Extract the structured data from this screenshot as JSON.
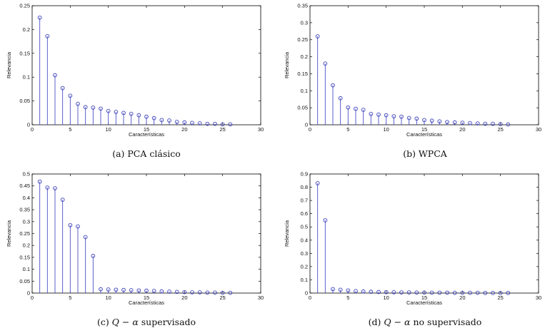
{
  "chart_data": [
    {
      "type": "stem",
      "caption": "(a)  PCA clásico",
      "xlabel": "Características",
      "ylabel": "Relevancia",
      "xlim": [
        0,
        30
      ],
      "ylim": [
        0,
        0.25
      ],
      "xticks": [
        0,
        5,
        10,
        15,
        20,
        25,
        30
      ],
      "yticks": [
        0,
        0.05,
        0.1,
        0.15,
        0.2,
        0.25
      ],
      "ytick_labels": [
        "0",
        "0.05",
        "0.1",
        "0.15",
        "0.2",
        "0.25"
      ],
      "x": [
        1,
        2,
        3,
        4,
        5,
        6,
        7,
        8,
        9,
        10,
        11,
        12,
        13,
        14,
        15,
        16,
        17,
        18,
        19,
        20,
        21,
        22,
        23,
        24,
        25,
        26
      ],
      "values": [
        0.225,
        0.186,
        0.104,
        0.077,
        0.061,
        0.044,
        0.037,
        0.036,
        0.034,
        0.029,
        0.027,
        0.025,
        0.023,
        0.02,
        0.017,
        0.014,
        0.01,
        0.009,
        0.006,
        0.005,
        0.004,
        0.003,
        0.002,
        0.002,
        0.001,
        0.001
      ]
    },
    {
      "type": "stem",
      "caption": "(b)  WPCA",
      "xlabel": "Características",
      "ylabel": "Relevancia",
      "xlim": [
        0,
        30
      ],
      "ylim": [
        0,
        0.35
      ],
      "xticks": [
        0,
        5,
        10,
        15,
        20,
        25,
        30
      ],
      "yticks": [
        0,
        0.05,
        0.1,
        0.15,
        0.2,
        0.25,
        0.3,
        0.35
      ],
      "ytick_labels": [
        "0",
        "0.05",
        "0.1",
        "0.15",
        "0.2",
        "0.25",
        "0.3",
        "0.35"
      ],
      "x": [
        1,
        2,
        3,
        4,
        5,
        6,
        7,
        8,
        9,
        10,
        11,
        12,
        13,
        14,
        15,
        16,
        17,
        18,
        19,
        20,
        21,
        22,
        23,
        24,
        25,
        26
      ],
      "values": [
        0.26,
        0.18,
        0.116,
        0.078,
        0.051,
        0.047,
        0.044,
        0.032,
        0.03,
        0.028,
        0.025,
        0.024,
        0.02,
        0.018,
        0.014,
        0.012,
        0.01,
        0.008,
        0.007,
        0.006,
        0.005,
        0.004,
        0.003,
        0.003,
        0.002,
        0.001
      ]
    },
    {
      "type": "stem",
      "caption_prefix": "(c)  ",
      "caption_math": "Q − α",
      "caption_suffix": " supervisado",
      "xlabel": "Características",
      "ylabel": "Relevancia",
      "xlim": [
        0,
        30
      ],
      "ylim": [
        0,
        0.5
      ],
      "xticks": [
        0,
        5,
        10,
        15,
        20,
        25,
        30
      ],
      "yticks": [
        0,
        0.05,
        0.1,
        0.15,
        0.2,
        0.25,
        0.3,
        0.35,
        0.4,
        0.45,
        0.5
      ],
      "ytick_labels": [
        "0",
        "0.05",
        "0.1",
        "0.15",
        "0.2",
        "0.25",
        "0.3",
        "0.35",
        "0.4",
        "0.45",
        "0.5"
      ],
      "x": [
        1,
        2,
        3,
        4,
        5,
        6,
        7,
        8,
        9,
        10,
        11,
        12,
        13,
        14,
        15,
        16,
        17,
        18,
        19,
        20,
        21,
        22,
        23,
        24,
        25,
        26
      ],
      "values": [
        0.468,
        0.443,
        0.44,
        0.392,
        0.285,
        0.28,
        0.235,
        0.156,
        0.016,
        0.015,
        0.014,
        0.013,
        0.012,
        0.011,
        0.01,
        0.009,
        0.007,
        0.006,
        0.005,
        0.004,
        0.003,
        0.003,
        0.002,
        0.002,
        0.001,
        0.001
      ]
    },
    {
      "type": "stem",
      "caption_prefix": "(d)  ",
      "caption_math": "Q − α",
      "caption_suffix": " no supervisado",
      "xlabel": "Características",
      "ylabel": "Relevancia",
      "xlim": [
        0,
        30
      ],
      "ylim": [
        0,
        0.9
      ],
      "xticks": [
        0,
        5,
        10,
        15,
        20,
        25,
        30
      ],
      "yticks": [
        0,
        0.1,
        0.2,
        0.3,
        0.4,
        0.5,
        0.6,
        0.7,
        0.8,
        0.9
      ],
      "ytick_labels": [
        "0",
        "0.1",
        "0.2",
        "0.3",
        "0.4",
        "0.5",
        "0.6",
        "0.7",
        "0.8",
        "0.9"
      ],
      "x": [
        1,
        2,
        3,
        4,
        5,
        6,
        7,
        8,
        9,
        10,
        11,
        12,
        13,
        14,
        15,
        16,
        17,
        18,
        19,
        20,
        21,
        22,
        23,
        24,
        25,
        26
      ],
      "values": [
        0.83,
        0.55,
        0.03,
        0.025,
        0.02,
        0.015,
        0.012,
        0.01,
        0.008,
        0.007,
        0.006,
        0.005,
        0.005,
        0.004,
        0.004,
        0.003,
        0.003,
        0.003,
        0.002,
        0.002,
        0.002,
        0.002,
        0.001,
        0.001,
        0.001,
        0.001
      ]
    }
  ],
  "colors": {
    "stem": "#4a4fc8",
    "marker": "#3a3fb8",
    "axis": "#000000"
  }
}
